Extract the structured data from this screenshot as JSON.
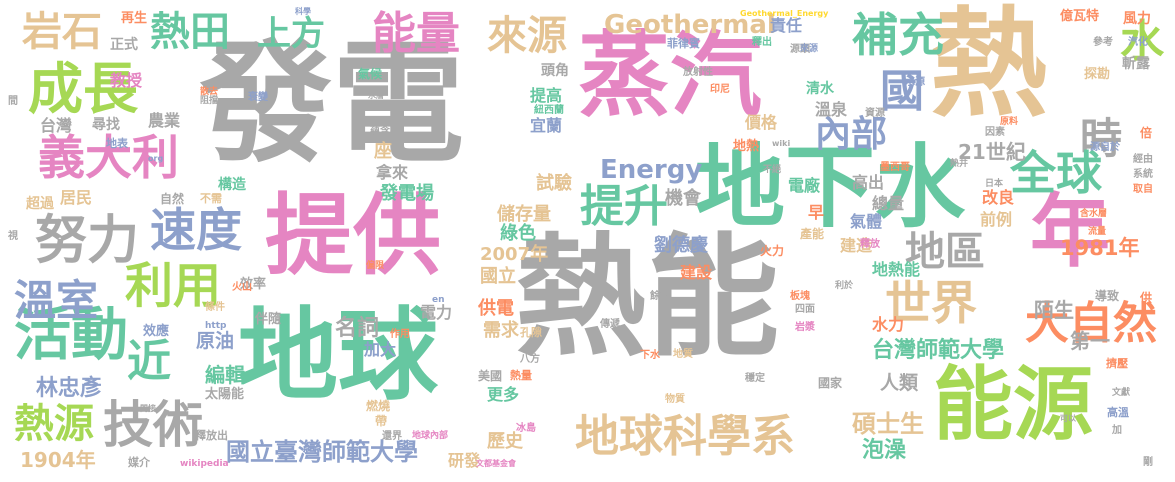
{
  "palette": {
    "gray": "#a8a8a8",
    "pink": "#e585c2",
    "green": "#66c7a1",
    "tan": "#e5c494",
    "lime": "#a6d854",
    "orange": "#fc8d62",
    "blue": "#8da0cb",
    "yellow": "#ffd92f"
  },
  "words": [
    "發電",
    "熱能",
    "熱",
    "蒸汽",
    "地球",
    "提供",
    "地下水",
    "能源",
    "年",
    "成長",
    "義大利",
    "努力",
    "速度",
    "利用",
    "活動",
    "熱田",
    "能量",
    "上方",
    "補充",
    "國",
    "時",
    "全球",
    "地區",
    "世界",
    "大自然",
    "地球科學系",
    "技術",
    "熱源",
    "溫室",
    "近",
    "提升",
    "內部",
    "來源",
    "岩石",
    "水",
    "Geothermal",
    "Energy",
    "國立臺灣師範大學",
    "台灣師範大學",
    "林忠彥",
    "1904年",
    "1981年",
    "2007年",
    "21世紀",
    "碩士生",
    "泡澡",
    "歷史",
    "研發",
    "名詞",
    "電力",
    "原油",
    "編輯",
    "加大",
    "更多",
    "美國",
    "人類",
    "第一",
    "陌生",
    "水力",
    "國家",
    "供電",
    "需求",
    "建設",
    "劉德慶",
    "國立",
    "機會",
    "綠色",
    "儲存量",
    "試驗",
    "發電場",
    "拿來",
    "座",
    "電廠",
    "高出",
    "早",
    "氣體",
    "總量",
    "改良",
    "前例",
    "建造",
    "產能",
    "火力",
    "地熱能",
    "價格",
    "地熱",
    "責任",
    "溫泉",
    "清水",
    "宜蘭",
    "提高",
    "頭角",
    "教授",
    "台灣",
    "尋找",
    "農業",
    "正式",
    "再生",
    "居民",
    "超過",
    "構造",
    "效率",
    "伴隨",
    "效應",
    "太陽能",
    "釋放出",
    "媒介",
    "wikipedia",
    "http",
    "en",
    "條件",
    "火山",
    "作用",
    "孔隙",
    "八方",
    "熱量",
    "燃燒",
    "冰島",
    "帶",
    "還界",
    "地球內部",
    "傳遞",
    "餘熱",
    "下水",
    "物質",
    "穩定",
    "地質",
    "四面",
    "岩漿",
    "板塊",
    "利於",
    "釋放",
    "含水層",
    "導致",
    "供",
    "擠壓",
    "高溫",
    "文獻",
    "加",
    "剛",
    "億瓦特",
    "風力",
    "汽化",
    "參考",
    "斬露",
    "探勘",
    "取自",
    "系統",
    "經由",
    "源自於",
    "倍",
    "因素",
    "墨西哥",
    "日本",
    "流量",
    "不絕",
    "原料",
    "源頭",
    "印尼",
    "放射性",
    "菲律賓",
    "來源",
    "釋出",
    "水源",
    "資源",
    "紐西蘭",
    "蘊含",
    "不需",
    "自然",
    "地表",
    "氣候",
    "衰變",
    "水層",
    "阻擋",
    "散去",
    "科學",
    "Geothermal_Energy",
    "wiki",
    "org",
    "偏限",
    "間",
    "視",
    "熱井",
    "文都基金會",
    "間接",
    "可以"
  ]
}
